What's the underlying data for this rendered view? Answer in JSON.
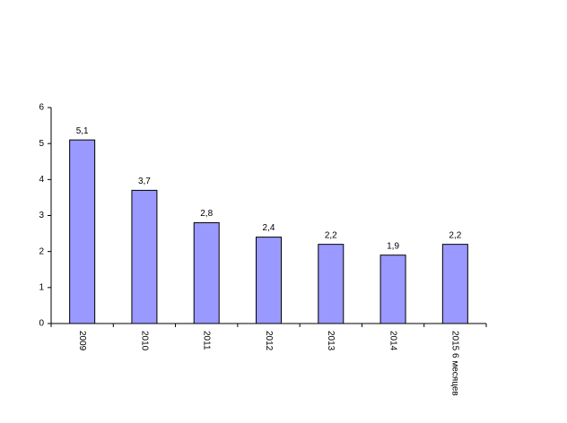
{
  "chart_data": {
    "type": "bar",
    "categories": [
      "2009",
      "2010",
      "2011",
      "2012",
      "2013",
      "2014",
      "2015 6 месяцев"
    ],
    "values": [
      5.1,
      3.7,
      2.8,
      2.4,
      2.2,
      1.9,
      2.2
    ],
    "value_labels": [
      "5,1",
      "3,7",
      "2,8",
      "2,4",
      "2,2",
      "1,9",
      "2,2"
    ],
    "color": "#9999ff",
    "ylim": [
      0,
      6
    ],
    "yticks": [
      0,
      1,
      2,
      3,
      4,
      5,
      6
    ],
    "grid": false
  }
}
